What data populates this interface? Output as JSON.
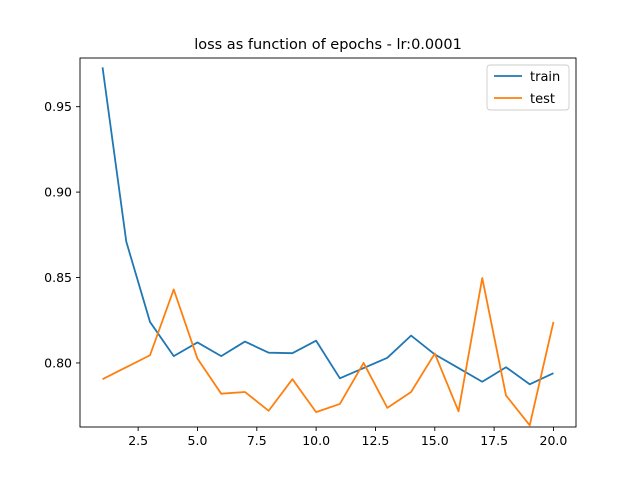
{
  "chart_data": {
    "type": "line",
    "title": "loss as function of epochs - lr:0.0001",
    "xlabel": "",
    "ylabel": "",
    "xlim": [
      0.05,
      20.95
    ],
    "ylim": [
      0.7625,
      0.9785
    ],
    "xticks": [
      2.5,
      5.0,
      7.5,
      10.0,
      12.5,
      15.0,
      17.5,
      20.0
    ],
    "xtick_labels": [
      "2.5",
      "5.0",
      "7.5",
      "10.0",
      "12.5",
      "15.0",
      "17.5",
      "20.0"
    ],
    "yticks": [
      0.8,
      0.85,
      0.9,
      0.95
    ],
    "ytick_labels": [
      "0.80",
      "0.85",
      "0.90",
      "0.95"
    ],
    "grid": false,
    "legend_position": "top-right",
    "x": [
      1,
      2,
      3,
      4,
      5,
      6,
      7,
      8,
      9,
      10,
      11,
      12,
      13,
      14,
      15,
      16,
      17,
      18,
      19,
      20
    ],
    "series": [
      {
        "name": "train",
        "color": "#1f77b4",
        "values": [
          0.973,
          0.871,
          0.824,
          0.804,
          0.812,
          0.804,
          0.8125,
          0.806,
          0.8057,
          0.813,
          0.791,
          0.797,
          0.803,
          0.816,
          0.805,
          0.797,
          0.789,
          0.7975,
          0.7875,
          0.794
        ]
      },
      {
        "name": "test",
        "color": "#ff7f0e",
        "values": [
          0.7905,
          0.7975,
          0.8045,
          0.843,
          0.8025,
          0.782,
          0.783,
          0.772,
          0.7905,
          0.7712,
          0.776,
          0.8,
          0.7737,
          0.783,
          0.8055,
          0.7717,
          0.8497,
          0.781,
          0.7635,
          0.824
        ]
      }
    ]
  }
}
